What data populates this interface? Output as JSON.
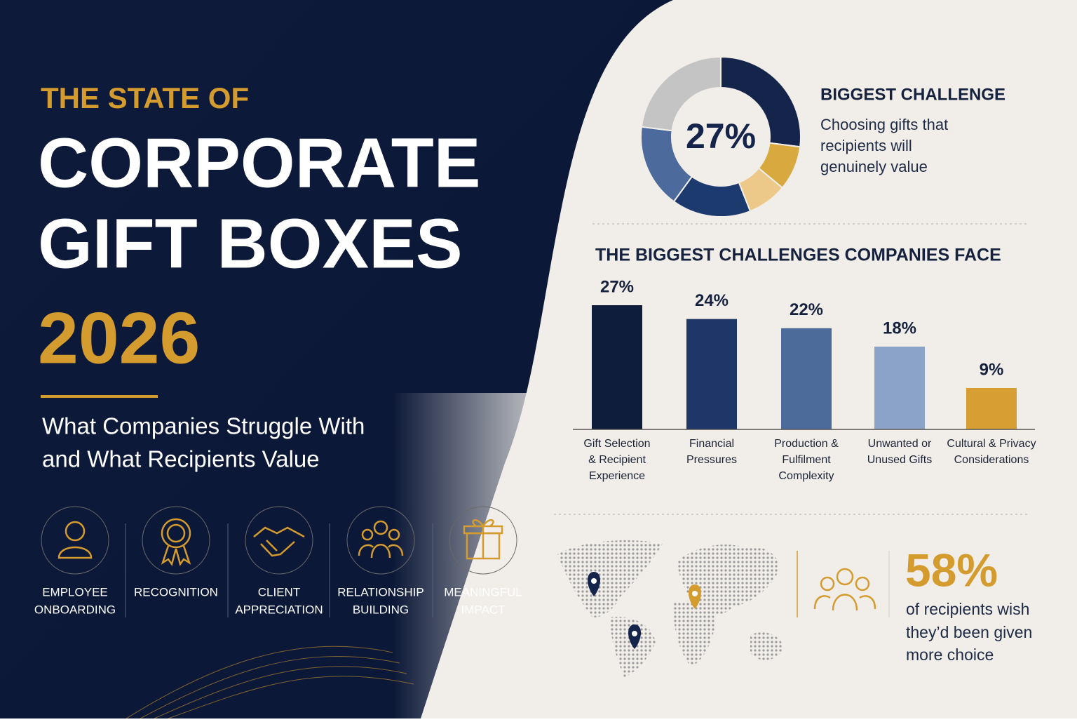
{
  "header": {
    "kicker": "THE STATE OF",
    "title_lines": [
      "CORPORATE",
      "GIFT BOXES"
    ],
    "year": "2026",
    "subtitle_lines": [
      "What Companies Struggle With",
      "and What Recipients Value"
    ]
  },
  "uses": [
    [
      "EMPLOYEE",
      "ONBOARDING"
    ],
    [
      "RECOGNITION"
    ],
    [
      "CLIENT",
      "APPRECIATION"
    ],
    [
      "RELATIONSHIP",
      "BUILDING"
    ],
    [
      "MEANINGFUL",
      "IMPACT"
    ]
  ],
  "chart_data": [
    {
      "type": "pie",
      "title": "BIGGEST CHALLENGE",
      "center_label": "27%",
      "description_lines": [
        "Choosing gifts that",
        "recipients will",
        "genuinely value"
      ],
      "values": [
        27,
        9,
        8,
        16,
        17,
        23
      ],
      "colors": [
        "#14244a",
        "#d8a93f",
        "#ecc889",
        "#1d3a6e",
        "#4c6a9c",
        "#c4c4c4"
      ]
    },
    {
      "type": "bar",
      "title": "THE BIGGEST CHALLENGES COMPANIES FACE",
      "categories": [
        "Gift Selection & Recipient Experience",
        "Financial Pressures",
        "Production & Fulfilment Complexity",
        "Unwanted or Unused Gifts",
        "Cultural & Privacy Considerations"
      ],
      "values": [
        27,
        24,
        22,
        18,
        9
      ],
      "value_labels": [
        "27%",
        "24%",
        "22%",
        "18%",
        "9%"
      ],
      "colors": [
        "#0f1d3d",
        "#1e3768",
        "#4c6b9b",
        "#8aa3c6",
        "#d79f33"
      ]
    }
  ],
  "stat": {
    "value": "58%",
    "lines": [
      "of recipients wish",
      "they’d been given",
      "more choice"
    ]
  }
}
